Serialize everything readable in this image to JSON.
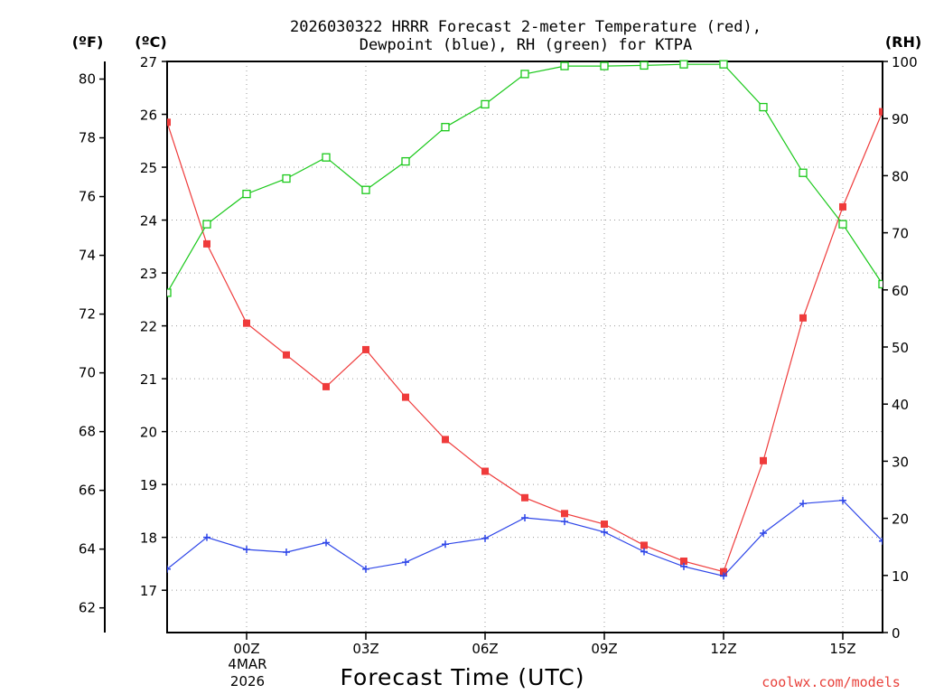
{
  "colors": {
    "temperature": "#ef3b3b",
    "dewpoint": "#2d45e8",
    "rh": "#19c819",
    "credit": "#e8403a"
  },
  "chart_data": {
    "type": "line",
    "title_line1": "2026030322 HRRR Forecast 2-meter Temperature (red),",
    "title_line2": "Dewpoint (blue), RH (green) for KTPA",
    "xlabel": "Forecast Time (UTC)",
    "credit": "coolwx.com/models",
    "unit_labels": {
      "fahrenheit": "(ºF)",
      "celsius": "(ºC)",
      "rh": "(RH)"
    },
    "x_hours": [
      -2,
      -1,
      0,
      1,
      2,
      3,
      4,
      5,
      6,
      7,
      8,
      9,
      10,
      11,
      12,
      13,
      14,
      15,
      16
    ],
    "x_ticks": [
      {
        "hour": 0,
        "label": "00Z"
      },
      {
        "hour": 3,
        "label": "03Z"
      },
      {
        "hour": 6,
        "label": "06Z"
      },
      {
        "hour": 9,
        "label": "09Z"
      },
      {
        "hour": 12,
        "label": "12Z"
      },
      {
        "hour": 15,
        "label": "15Z"
      }
    ],
    "date_label": "4MAR",
    "year_label": "2026",
    "celsius_axis": {
      "range": [
        16.2,
        27.0
      ],
      "ticks": [
        17,
        18,
        19,
        20,
        21,
        22,
        23,
        24,
        25,
        26,
        27
      ]
    },
    "fahrenheit_axis": {
      "ticks": [
        62,
        64,
        66,
        68,
        70,
        72,
        74,
        76,
        78,
        80
      ]
    },
    "rh_axis": {
      "range": [
        0,
        100
      ],
      "ticks": [
        0,
        10,
        20,
        30,
        40,
        50,
        60,
        70,
        80,
        90,
        100
      ]
    },
    "series": [
      {
        "name": "Temperature",
        "axis": "celsius",
        "color": "#ef3b3b",
        "marker": "square",
        "values": [
          25.85,
          23.55,
          22.05,
          21.45,
          20.85,
          21.55,
          20.65,
          19.85,
          19.25,
          18.75,
          18.45,
          18.25,
          17.85,
          17.55,
          17.35,
          19.45,
          22.15,
          24.25,
          26.05
        ]
      },
      {
        "name": "Dewpoint",
        "axis": "celsius",
        "color": "#2d45e8",
        "marker": "plus",
        "values": [
          17.4,
          18.0,
          17.77,
          17.72,
          17.9,
          17.4,
          17.53,
          17.87,
          17.98,
          18.37,
          18.3,
          18.1,
          17.73,
          17.45,
          17.27,
          18.08,
          18.64,
          18.7,
          17.93
        ]
      },
      {
        "name": "RH",
        "axis": "rh",
        "color": "#19c819",
        "marker": "open-square",
        "values": [
          59.5,
          71.5,
          76.8,
          79.5,
          83.2,
          77.5,
          82.5,
          88.5,
          92.5,
          97.8,
          99.2,
          99.2,
          99.3,
          99.5,
          99.5,
          92.0,
          80.5,
          71.5,
          61.0
        ]
      }
    ]
  }
}
